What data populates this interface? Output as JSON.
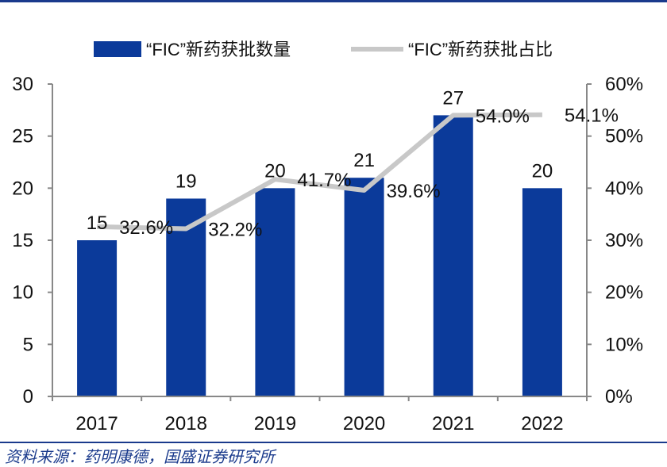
{
  "chart_data": {
    "type": "bar+line",
    "categories": [
      "2017",
      "2018",
      "2019",
      "2020",
      "2021",
      "2022"
    ],
    "series": [
      {
        "name": "“FIC”新药获批数量",
        "type": "bar",
        "axis": "left",
        "values": [
          15,
          19,
          20,
          21,
          27,
          20
        ],
        "labels": [
          "15",
          "19",
          "20",
          "21",
          "27",
          "20"
        ]
      },
      {
        "name": "“FIC”新药获批占比",
        "type": "line",
        "axis": "right",
        "values": [
          32.6,
          32.2,
          41.7,
          39.6,
          54.0,
          54.1
        ],
        "labels": [
          "32.6%",
          "32.2%",
          "41.7%",
          "39.6%",
          "54.0%",
          "54.1%"
        ]
      }
    ],
    "left_axis": {
      "ylim": [
        0,
        30
      ],
      "ticks": [
        "0",
        "5",
        "10",
        "15",
        "20",
        "25",
        "30"
      ]
    },
    "right_axis": {
      "ylim": [
        0,
        60
      ],
      "ticks": [
        "0%",
        "10%",
        "20%",
        "30%",
        "40%",
        "50%",
        "60%"
      ]
    },
    "legend_position": "top",
    "grid": false
  },
  "colors": {
    "bar": "#0b3a9a",
    "line": "#c8c8c8",
    "axis": "#888888",
    "rule": "#1a3a8c",
    "text": "#111111"
  },
  "source": "资料来源：药明康德，国盛证券研究所"
}
